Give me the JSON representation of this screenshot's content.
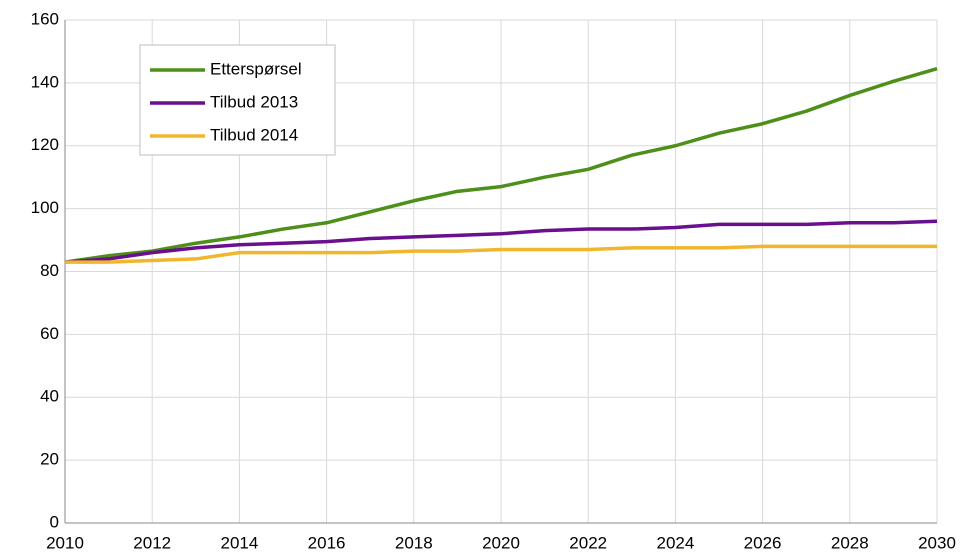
{
  "chart_data": {
    "type": "line",
    "x": [
      2010,
      2011,
      2012,
      2013,
      2014,
      2015,
      2016,
      2017,
      2018,
      2019,
      2020,
      2021,
      2022,
      2023,
      2024,
      2025,
      2026,
      2027,
      2028,
      2029,
      2030
    ],
    "series": [
      {
        "name": "Etterspørsel",
        "color": "#4e8f1a",
        "values": [
          83,
          85,
          86.5,
          89,
          91,
          93.5,
          95.5,
          99,
          102.5,
          105.5,
          107,
          110,
          112.5,
          117,
          120,
          124,
          127,
          131,
          136,
          140.5,
          144.5
        ]
      },
      {
        "name": "Tilbud 2013",
        "color": "#6a0f8e",
        "values": [
          83,
          84,
          86,
          87.5,
          88.5,
          89,
          89.5,
          90.5,
          91,
          91.5,
          92,
          93,
          93.5,
          93.5,
          94,
          95,
          95,
          95,
          95.5,
          95.5,
          96
        ]
      },
      {
        "name": "Tilbud 2014",
        "color": "#f0b72c",
        "values": [
          83,
          83,
          83.5,
          84,
          86,
          86,
          86,
          86,
          86.5,
          86.5,
          87,
          87,
          87,
          87.5,
          87.5,
          87.5,
          88,
          88,
          88,
          88,
          88
        ]
      }
    ],
    "xlim": [
      2010,
      2030
    ],
    "xticks": [
      2010,
      2012,
      2014,
      2016,
      2018,
      2020,
      2022,
      2024,
      2026,
      2028,
      2030
    ],
    "ylim": [
      0,
      160
    ],
    "yticks": [
      0,
      20,
      40,
      60,
      80,
      100,
      120,
      140,
      160
    ],
    "grid": true,
    "legend": "upper left"
  }
}
